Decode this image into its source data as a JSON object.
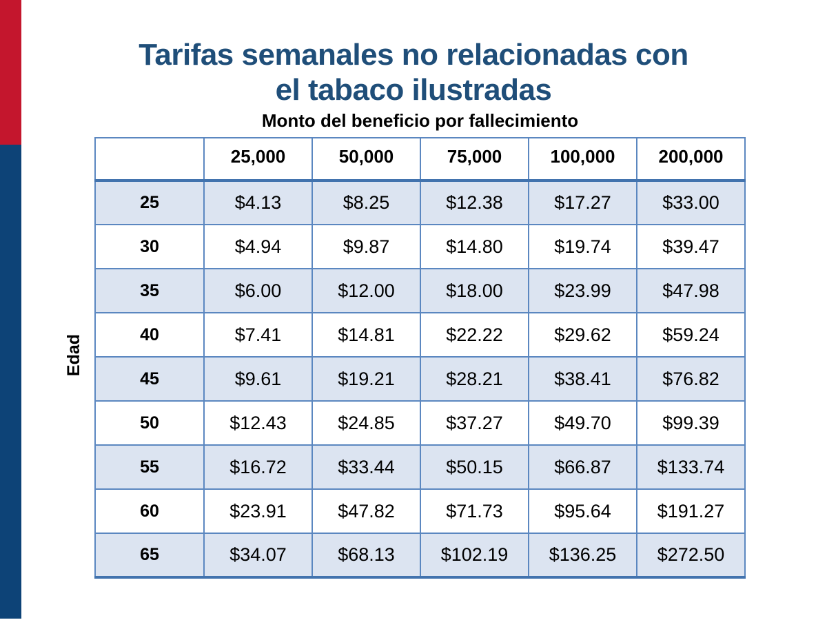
{
  "accent_bars": {
    "red_color": "#C4162D",
    "navy_color": "#0D4377"
  },
  "title": {
    "line1": "Tarifas semanales no relacionadas con",
    "line2": "el tabaco ilustradas",
    "color": "#1F4E79"
  },
  "table": {
    "caption": "Monto del beneficio por fallecimiento",
    "row_axis_label": "Edad",
    "column_headers": [
      "25,000",
      "50,000",
      "75,000",
      "100,000",
      "200,000"
    ],
    "rows": [
      {
        "age": "25",
        "values": [
          "$4.13",
          "$8.25",
          "$12.38",
          "$17.27",
          "$33.00"
        ]
      },
      {
        "age": "30",
        "values": [
          "$4.94",
          "$9.87",
          "$14.80",
          "$19.74",
          "$39.47"
        ]
      },
      {
        "age": "35",
        "values": [
          "$6.00",
          "$12.00",
          "$18.00",
          "$23.99",
          "$47.98"
        ]
      },
      {
        "age": "40",
        "values": [
          "$7.41",
          "$14.81",
          "$22.22",
          "$29.62",
          "$59.24"
        ]
      },
      {
        "age": "45",
        "values": [
          "$9.61",
          "$19.21",
          "$28.21",
          "$38.41",
          "$76.82"
        ]
      },
      {
        "age": "50",
        "values": [
          "$12.43",
          "$24.85",
          "$37.27",
          "$49.70",
          "$99.39"
        ]
      },
      {
        "age": "55",
        "values": [
          "$16.72",
          "$33.44",
          "$50.15",
          "$66.87",
          "$133.74"
        ]
      },
      {
        "age": "60",
        "values": [
          "$23.91",
          "$47.82",
          "$71.73",
          "$95.64",
          "$191.27"
        ]
      },
      {
        "age": "65",
        "values": [
          "$34.07",
          "$68.13",
          "$102.19",
          "$136.25",
          "$272.50"
        ]
      }
    ],
    "colors": {
      "stripe_row": "#DCE4F1",
      "border_thin": "#5B87C0",
      "border_thick": "#4273AE"
    }
  }
}
